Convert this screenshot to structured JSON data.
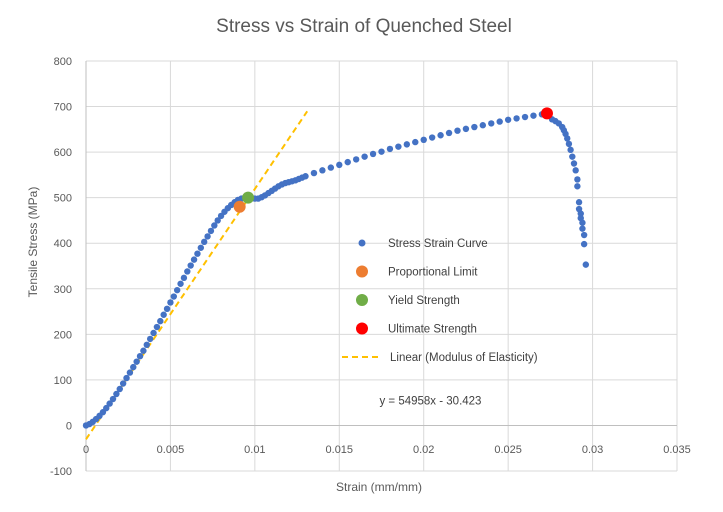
{
  "chart_data": {
    "type": "scatter",
    "title": "Stress vs Strain of Quenched Steel",
    "xlabel": "Strain (mm/mm)",
    "ylabel": "Tensile Stress (MPa)",
    "xlim": [
      0,
      0.035
    ],
    "ylim": [
      -100,
      800
    ],
    "x_ticks": [
      0,
      0.005,
      0.01,
      0.015,
      0.02,
      0.025,
      0.03,
      0.035
    ],
    "x_tick_labels": [
      "0",
      "0.005",
      "0.01",
      "0.015",
      "0.02",
      "0.025",
      "0.03",
      "0.035"
    ],
    "y_ticks": [
      -100,
      0,
      100,
      200,
      300,
      400,
      500,
      600,
      700,
      800
    ],
    "y_tick_labels": [
      "-100",
      "0",
      "100",
      "200",
      "300",
      "400",
      "500",
      "600",
      "700",
      "800"
    ],
    "grid": true,
    "legend_position": "center-right",
    "series": [
      {
        "name": "Stress Strain Curve",
        "kind": "points",
        "color": "#4472C4",
        "points": [
          [
            0.0,
            0
          ],
          [
            0.0002,
            3
          ],
          [
            0.0004,
            8
          ],
          [
            0.0006,
            14
          ],
          [
            0.0008,
            21
          ],
          [
            0.001,
            29
          ],
          [
            0.0012,
            38
          ],
          [
            0.0014,
            48
          ],
          [
            0.0016,
            58
          ],
          [
            0.0018,
            69
          ],
          [
            0.002,
            80
          ],
          [
            0.0022,
            92
          ],
          [
            0.0024,
            104
          ],
          [
            0.0026,
            116
          ],
          [
            0.0028,
            128
          ],
          [
            0.003,
            140
          ],
          [
            0.0032,
            152
          ],
          [
            0.0034,
            164
          ],
          [
            0.0036,
            177
          ],
          [
            0.0038,
            190
          ],
          [
            0.004,
            203
          ],
          [
            0.0042,
            216
          ],
          [
            0.0044,
            229
          ],
          [
            0.0046,
            243
          ],
          [
            0.0048,
            256
          ],
          [
            0.005,
            270
          ],
          [
            0.0052,
            283
          ],
          [
            0.0054,
            297
          ],
          [
            0.0056,
            311
          ],
          [
            0.0058,
            324
          ],
          [
            0.006,
            338
          ],
          [
            0.0062,
            351
          ],
          [
            0.0064,
            364
          ],
          [
            0.0066,
            377
          ],
          [
            0.0068,
            390
          ],
          [
            0.007,
            403
          ],
          [
            0.0072,
            415
          ],
          [
            0.0074,
            427
          ],
          [
            0.0076,
            439
          ],
          [
            0.0078,
            450
          ],
          [
            0.008,
            460
          ],
          [
            0.0082,
            469
          ],
          [
            0.0084,
            477
          ],
          [
            0.0086,
            484
          ],
          [
            0.0088,
            490
          ],
          [
            0.009,
            495
          ],
          [
            0.0092,
            498
          ],
          [
            0.0094,
            500
          ],
          [
            0.0096,
            500
          ],
          [
            0.0098,
            499
          ],
          [
            0.01,
            498
          ],
          [
            0.0102,
            498
          ],
          [
            0.0104,
            501
          ],
          [
            0.0106,
            505
          ],
          [
            0.0108,
            510
          ],
          [
            0.011,
            515
          ],
          [
            0.0112,
            520
          ],
          [
            0.0114,
            525
          ],
          [
            0.0116,
            529
          ],
          [
            0.0118,
            532
          ],
          [
            0.012,
            534
          ],
          [
            0.0122,
            536
          ],
          [
            0.0124,
            538
          ],
          [
            0.0126,
            541
          ],
          [
            0.0128,
            544
          ],
          [
            0.013,
            547
          ],
          [
            0.0135,
            554
          ],
          [
            0.014,
            560
          ],
          [
            0.0145,
            566
          ],
          [
            0.015,
            572
          ],
          [
            0.0155,
            578
          ],
          [
            0.016,
            584
          ],
          [
            0.0165,
            590
          ],
          [
            0.017,
            596
          ],
          [
            0.0175,
            601
          ],
          [
            0.018,
            607
          ],
          [
            0.0185,
            612
          ],
          [
            0.019,
            617
          ],
          [
            0.0195,
            622
          ],
          [
            0.02,
            627
          ],
          [
            0.0205,
            632
          ],
          [
            0.021,
            637
          ],
          [
            0.0215,
            642
          ],
          [
            0.022,
            647
          ],
          [
            0.0225,
            651
          ],
          [
            0.023,
            655
          ],
          [
            0.0235,
            659
          ],
          [
            0.024,
            663
          ],
          [
            0.0245,
            667
          ],
          [
            0.025,
            671
          ],
          [
            0.0255,
            674
          ],
          [
            0.026,
            677
          ],
          [
            0.0265,
            680
          ],
          [
            0.027,
            683
          ],
          [
            0.0273,
            685
          ],
          [
            0.0276,
            672
          ],
          [
            0.0278,
            668
          ],
          [
            0.028,
            663
          ],
          [
            0.0282,
            655
          ],
          [
            0.0283,
            648
          ],
          [
            0.0284,
            640
          ],
          [
            0.0285,
            630
          ],
          [
            0.0286,
            618
          ],
          [
            0.0287,
            605
          ],
          [
            0.0288,
            590
          ],
          [
            0.0289,
            575
          ],
          [
            0.029,
            560
          ],
          [
            0.0291,
            540
          ],
          [
            0.0291,
            525
          ],
          [
            0.0292,
            490
          ],
          [
            0.0292,
            475
          ],
          [
            0.0293,
            465
          ],
          [
            0.0293,
            455
          ],
          [
            0.0294,
            445
          ],
          [
            0.0294,
            432
          ],
          [
            0.0295,
            418
          ],
          [
            0.0295,
            398
          ],
          [
            0.0296,
            353
          ]
        ]
      },
      {
        "name": "Proportional Limit",
        "kind": "marker",
        "color": "#ED7D31",
        "points": [
          [
            0.0091,
            480
          ]
        ]
      },
      {
        "name": "Yield Strength",
        "kind": "marker",
        "color": "#70AD47",
        "points": [
          [
            0.0096,
            500
          ]
        ]
      },
      {
        "name": "Ultimate Strength",
        "kind": "marker",
        "color": "#FF0000",
        "points": [
          [
            0.0273,
            685
          ]
        ]
      },
      {
        "name": "Linear (Modulus of Elasticity)",
        "kind": "trendline",
        "color": "#FFC000",
        "slope": 54958,
        "intercept": -30.423,
        "x_range": [
          0,
          0.0131
        ]
      }
    ],
    "annotations": [
      {
        "text": "y = 54958x - 30.423",
        "x": 0.0204,
        "y": 55
      }
    ]
  }
}
